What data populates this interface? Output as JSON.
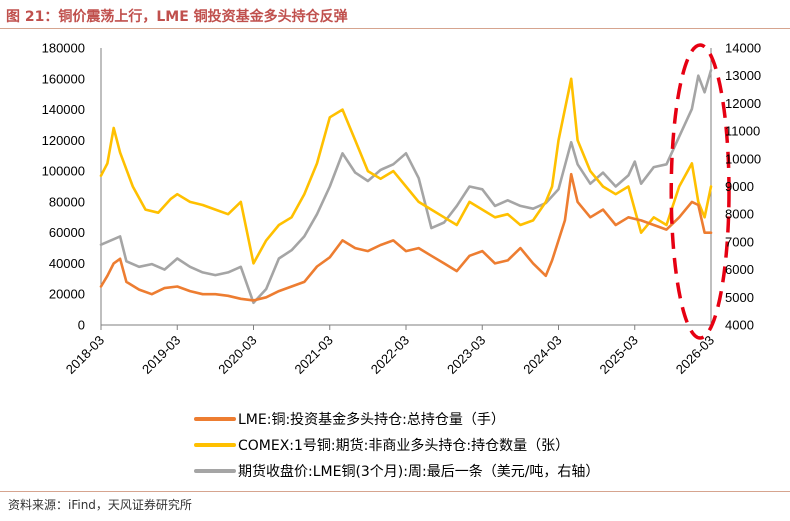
{
  "header": {
    "title": "图 21：铜价震荡上行，LME 铜投资基金多头持仓反弹"
  },
  "footer": {
    "source": "资料来源：iFind，天风证券研究所"
  },
  "colors": {
    "lme": "#ed7d31",
    "comex": "#ffc000",
    "price": "#a5a5a5",
    "highlight": "#e60012",
    "title": "#c0504d"
  },
  "chart_data": {
    "type": "line",
    "x_ticks": [
      "2018-03",
      "2019-03",
      "2020-03",
      "2021-03",
      "2022-03",
      "2023-03",
      "2024-03",
      "2025-03",
      "2026-03"
    ],
    "x_range": [
      "2018-03",
      "2026-03"
    ],
    "y_left": {
      "ticks": [
        0,
        20000,
        40000,
        60000,
        80000,
        100000,
        120000,
        140000,
        160000,
        180000
      ],
      "range": [
        0,
        180000
      ]
    },
    "y_right": {
      "ticks": [
        4000,
        5000,
        6000,
        7000,
        8000,
        9000,
        10000,
        11000,
        12000,
        13000,
        14000
      ],
      "range": [
        4000,
        14000
      ]
    },
    "grid": false,
    "legend_position": "bottom",
    "highlight": {
      "shape": "dashed-ellipse",
      "region": "2025-10 to 2026-03"
    },
    "series": [
      {
        "key": "lme",
        "name": "LME:铜:投资基金多头持仓:总持仓量（手）",
        "axis": "left",
        "points": [
          [
            "2018-03",
            25000
          ],
          [
            "2018-04",
            32000
          ],
          [
            "2018-05",
            40000
          ],
          [
            "2018-06",
            43000
          ],
          [
            "2018-07",
            28000
          ],
          [
            "2018-09",
            23000
          ],
          [
            "2018-11",
            20000
          ],
          [
            "2019-01",
            24000
          ],
          [
            "2019-03",
            25000
          ],
          [
            "2019-05",
            22000
          ],
          [
            "2019-07",
            20000
          ],
          [
            "2019-09",
            20000
          ],
          [
            "2019-11",
            19000
          ],
          [
            "2020-01",
            17000
          ],
          [
            "2020-03",
            16000
          ],
          [
            "2020-05",
            18000
          ],
          [
            "2020-07",
            22000
          ],
          [
            "2020-09",
            25000
          ],
          [
            "2020-11",
            28000
          ],
          [
            "2021-01",
            38000
          ],
          [
            "2021-03",
            44000
          ],
          [
            "2021-05",
            55000
          ],
          [
            "2021-07",
            50000
          ],
          [
            "2021-09",
            48000
          ],
          [
            "2021-11",
            52000
          ],
          [
            "2022-01",
            55000
          ],
          [
            "2022-03",
            48000
          ],
          [
            "2022-05",
            50000
          ],
          [
            "2022-07",
            45000
          ],
          [
            "2022-09",
            40000
          ],
          [
            "2022-11",
            35000
          ],
          [
            "2023-01",
            45000
          ],
          [
            "2023-03",
            48000
          ],
          [
            "2023-05",
            40000
          ],
          [
            "2023-07",
            42000
          ],
          [
            "2023-09",
            50000
          ],
          [
            "2023-11",
            40000
          ],
          [
            "2024-01",
            32000
          ],
          [
            "2024-02",
            42000
          ],
          [
            "2024-04",
            68000
          ],
          [
            "2024-05",
            98000
          ],
          [
            "2024-06",
            80000
          ],
          [
            "2024-08",
            70000
          ],
          [
            "2024-10",
            75000
          ],
          [
            "2024-12",
            65000
          ],
          [
            "2025-02",
            70000
          ],
          [
            "2025-04",
            68000
          ],
          [
            "2025-06",
            65000
          ],
          [
            "2025-08",
            62000
          ],
          [
            "2025-10",
            70000
          ],
          [
            "2025-12",
            80000
          ],
          [
            "2026-01",
            78000
          ],
          [
            "2026-02",
            60000
          ],
          [
            "2026-03",
            60000
          ]
        ]
      },
      {
        "key": "comex",
        "name": "COMEX:1号铜:期货:非商业多头持仓:持仓数量（张）",
        "axis": "left",
        "points": [
          [
            "2018-03",
            97000
          ],
          [
            "2018-04",
            105000
          ],
          [
            "2018-05",
            128000
          ],
          [
            "2018-06",
            112000
          ],
          [
            "2018-08",
            90000
          ],
          [
            "2018-10",
            75000
          ],
          [
            "2018-12",
            73000
          ],
          [
            "2019-02",
            82000
          ],
          [
            "2019-03",
            85000
          ],
          [
            "2019-05",
            80000
          ],
          [
            "2019-07",
            78000
          ],
          [
            "2019-09",
            75000
          ],
          [
            "2019-11",
            72000
          ],
          [
            "2020-01",
            80000
          ],
          [
            "2020-03",
            40000
          ],
          [
            "2020-05",
            55000
          ],
          [
            "2020-07",
            65000
          ],
          [
            "2020-09",
            70000
          ],
          [
            "2020-11",
            85000
          ],
          [
            "2021-01",
            105000
          ],
          [
            "2021-03",
            135000
          ],
          [
            "2021-05",
            140000
          ],
          [
            "2021-07",
            120000
          ],
          [
            "2021-09",
            100000
          ],
          [
            "2021-11",
            95000
          ],
          [
            "2022-01",
            100000
          ],
          [
            "2022-03",
            90000
          ],
          [
            "2022-05",
            80000
          ],
          [
            "2022-07",
            75000
          ],
          [
            "2022-09",
            70000
          ],
          [
            "2022-11",
            65000
          ],
          [
            "2023-01",
            80000
          ],
          [
            "2023-03",
            75000
          ],
          [
            "2023-05",
            70000
          ],
          [
            "2023-07",
            72000
          ],
          [
            "2023-09",
            65000
          ],
          [
            "2023-11",
            68000
          ],
          [
            "2024-01",
            80000
          ],
          [
            "2024-02",
            90000
          ],
          [
            "2024-03",
            120000
          ],
          [
            "2024-05",
            160000
          ],
          [
            "2024-06",
            120000
          ],
          [
            "2024-08",
            100000
          ],
          [
            "2024-10",
            90000
          ],
          [
            "2024-12",
            85000
          ],
          [
            "2025-02",
            90000
          ],
          [
            "2025-04",
            60000
          ],
          [
            "2025-06",
            70000
          ],
          [
            "2025-08",
            65000
          ],
          [
            "2025-10",
            90000
          ],
          [
            "2025-12",
            105000
          ],
          [
            "2026-01",
            80000
          ],
          [
            "2026-02",
            70000
          ],
          [
            "2026-03",
            90000
          ]
        ]
      },
      {
        "key": "price",
        "name": "期货收盘价:LME铜(3个月):周:最后一条（美元/吨，右轴）",
        "axis": "right",
        "points": [
          [
            "2018-03",
            6900
          ],
          [
            "2018-04",
            7000
          ],
          [
            "2018-06",
            7200
          ],
          [
            "2018-07",
            6300
          ],
          [
            "2018-09",
            6100
          ],
          [
            "2018-11",
            6200
          ],
          [
            "2019-01",
            6000
          ],
          [
            "2019-03",
            6400
          ],
          [
            "2019-05",
            6100
          ],
          [
            "2019-07",
            5900
          ],
          [
            "2019-09",
            5800
          ],
          [
            "2019-11",
            5900
          ],
          [
            "2020-01",
            6100
          ],
          [
            "2020-03",
            4800
          ],
          [
            "2020-05",
            5300
          ],
          [
            "2020-07",
            6400
          ],
          [
            "2020-09",
            6700
          ],
          [
            "2020-11",
            7200
          ],
          [
            "2021-01",
            8000
          ],
          [
            "2021-03",
            9000
          ],
          [
            "2021-05",
            10200
          ],
          [
            "2021-07",
            9500
          ],
          [
            "2021-09",
            9200
          ],
          [
            "2021-11",
            9600
          ],
          [
            "2022-01",
            9800
          ],
          [
            "2022-03",
            10200
          ],
          [
            "2022-05",
            9300
          ],
          [
            "2022-07",
            7500
          ],
          [
            "2022-09",
            7700
          ],
          [
            "2022-11",
            8300
          ],
          [
            "2023-01",
            9000
          ],
          [
            "2023-03",
            8900
          ],
          [
            "2023-05",
            8300
          ],
          [
            "2023-07",
            8500
          ],
          [
            "2023-09",
            8300
          ],
          [
            "2023-11",
            8200
          ],
          [
            "2024-01",
            8400
          ],
          [
            "2024-03",
            8900
          ],
          [
            "2024-05",
            10600
          ],
          [
            "2024-06",
            9800
          ],
          [
            "2024-08",
            9100
          ],
          [
            "2024-10",
            9500
          ],
          [
            "2024-12",
            9000
          ],
          [
            "2025-02",
            9400
          ],
          [
            "2025-03",
            9900
          ],
          [
            "2025-04",
            9100
          ],
          [
            "2025-06",
            9700
          ],
          [
            "2025-08",
            9800
          ],
          [
            "2025-10",
            10800
          ],
          [
            "2025-12",
            11800
          ],
          [
            "2026-01",
            13000
          ],
          [
            "2026-02",
            12400
          ],
          [
            "2026-03",
            13200
          ]
        ]
      }
    ]
  }
}
